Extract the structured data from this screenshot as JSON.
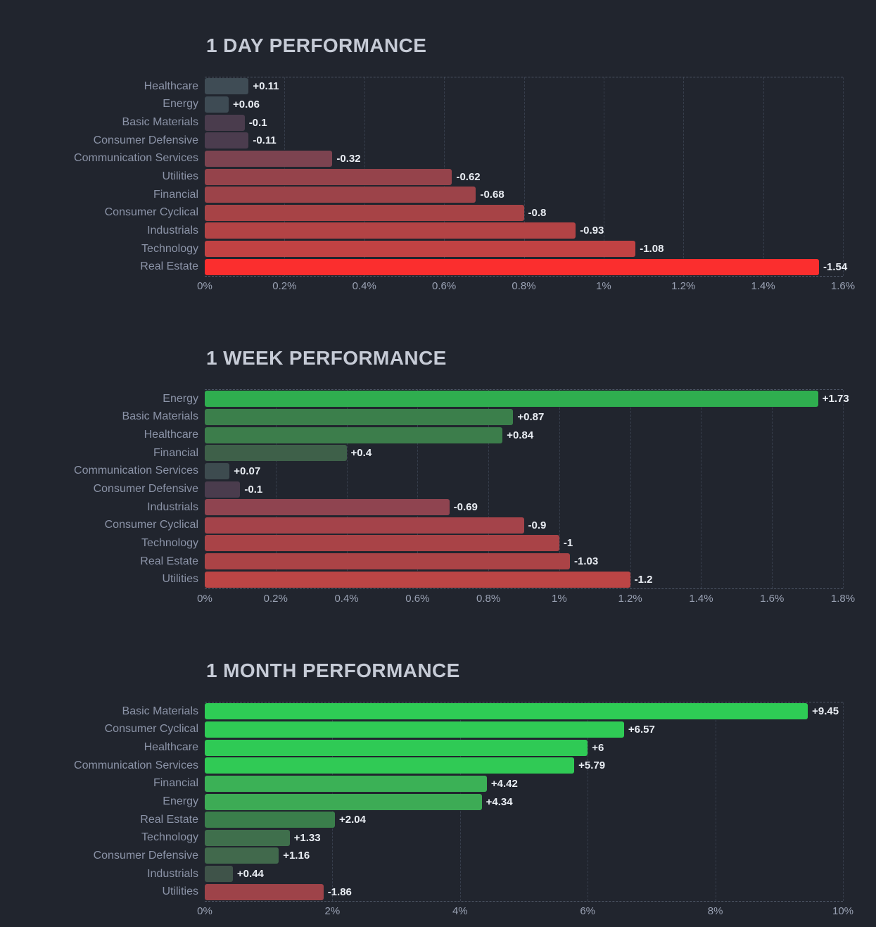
{
  "page": {
    "background_color": "#21252e",
    "positive_accent": "#2ecc55",
    "negative_accent": "#fb2e2e",
    "unit": "%"
  },
  "chart_data": [
    {
      "type": "bar",
      "orientation": "horizontal",
      "title": "1 DAY PERFORMANCE",
      "xlabel": "",
      "ylabel": "",
      "xlim": [
        0,
        1.6
      ],
      "grid": "dashed-vertical",
      "legend": false,
      "categories": [
        "Healthcare",
        "Energy",
        "Basic Materials",
        "Consumer Defensive",
        "Communication Services",
        "Utilities",
        "Financial",
        "Consumer Cyclical",
        "Industrials",
        "Technology",
        "Real Estate"
      ],
      "values": [
        0.11,
        0.06,
        -0.1,
        -0.11,
        -0.32,
        -0.62,
        -0.68,
        -0.8,
        -0.93,
        -1.08,
        -1.54
      ],
      "value_labels": [
        "+0.11",
        "+0.06",
        "-0.1",
        "-0.11",
        "-0.32",
        "-0.62",
        "-0.68",
        "-0.8",
        "-0.93",
        "-1.08",
        "-1.54"
      ],
      "bar_colors": [
        "#3f4c55",
        "#3e4b54",
        "#4a3c4d",
        "#4b3c4e",
        "#7c4350",
        "#95434b",
        "#9c4349",
        "#a74346",
        "#b34345",
        "#c14243",
        "#fb2e2e"
      ],
      "x_ticks": [
        "0%",
        "0.2%",
        "0.4%",
        "0.6%",
        "0.8%",
        "1%",
        "1.2%",
        "1.4%",
        "1.6%"
      ]
    },
    {
      "type": "bar",
      "orientation": "horizontal",
      "title": "1 WEEK PERFORMANCE",
      "xlabel": "",
      "ylabel": "",
      "xlim": [
        0,
        1.8
      ],
      "grid": "dashed-vertical",
      "legend": false,
      "categories": [
        "Energy",
        "Basic Materials",
        "Healthcare",
        "Financial",
        "Communication Services",
        "Consumer Defensive",
        "Industrials",
        "Consumer Cyclical",
        "Technology",
        "Real Estate",
        "Utilities"
      ],
      "values": [
        1.73,
        0.87,
        0.84,
        0.4,
        0.07,
        -0.1,
        -0.69,
        -0.9,
        -1,
        -1.03,
        -1.2
      ],
      "value_labels": [
        "+1.73",
        "+0.87",
        "+0.84",
        "+0.4",
        "+0.07",
        "-0.1",
        "-0.69",
        "-0.9",
        "-1",
        "-1.03",
        "-1.2"
      ],
      "bar_colors": [
        "#2fae4f",
        "#3b7f4b",
        "#3c7d4b",
        "#3e6049",
        "#3d4b4f",
        "#4a3c4d",
        "#8f4450",
        "#a4434a",
        "#a94347",
        "#ab4346",
        "#bc4545"
      ],
      "x_ticks": [
        "0%",
        "0.2%",
        "0.4%",
        "0.6%",
        "0.8%",
        "1%",
        "1.2%",
        "1.4%",
        "1.6%",
        "1.8%"
      ]
    },
    {
      "type": "bar",
      "orientation": "horizontal",
      "title": "1 MONTH PERFORMANCE",
      "xlabel": "",
      "ylabel": "",
      "xlim": [
        0,
        10
      ],
      "grid": "dashed-vertical",
      "legend": false,
      "categories": [
        "Basic Materials",
        "Consumer Cyclical",
        "Healthcare",
        "Communication Services",
        "Financial",
        "Energy",
        "Real Estate",
        "Technology",
        "Consumer Defensive",
        "Industrials",
        "Utilities"
      ],
      "values": [
        9.45,
        6.57,
        6,
        5.79,
        4.42,
        4.34,
        2.04,
        1.33,
        1.16,
        0.44,
        -1.86
      ],
      "value_labels": [
        "+9.45",
        "+6.57",
        "+6",
        "+5.79",
        "+4.42",
        "+4.34",
        "+2.04",
        "+1.33",
        "+1.16",
        "+0.44",
        "-1.86"
      ],
      "bar_colors": [
        "#2ecc55",
        "#2fcb55",
        "#2fca55",
        "#30ca55",
        "#3bb156",
        "#3dab55",
        "#3a7e4b",
        "#3f6f4c",
        "#41694c",
        "#3f5349",
        "#9e4349"
      ],
      "x_ticks": [
        "0%",
        "2%",
        "4%",
        "6%",
        "8%",
        "10%"
      ]
    }
  ]
}
